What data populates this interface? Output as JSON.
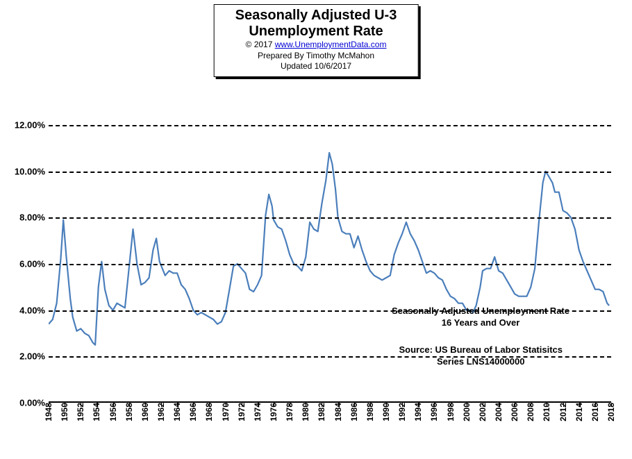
{
  "title": {
    "line1": "Seasonally Adjusted U-3",
    "line2": "Unemployment Rate",
    "copyright": "© 2017 ",
    "link_text": "www.UnemploymentData.com",
    "prepared": "Prepared By Timothy McMahon",
    "updated": "Updated 10/6/2017"
  },
  "chart": {
    "type": "line",
    "background_color": "#ffffff",
    "line_color": "#4a7ebb",
    "line_width": 2.2,
    "grid_dash": "8 6",
    "axis_color": "#000000",
    "y": {
      "min": 0,
      "max": 12,
      "step": 2,
      "format_suffix": ".00%"
    },
    "x": {
      "min": 1948,
      "max": 2018,
      "tick_step": 2
    },
    "annotations": {
      "a1_line1": "Seasonally Adjusted Unemployment Rate",
      "a1_line2": "16 Years and Over",
      "a2_line1": "Source:  US Bureau of Labor Statisitcs",
      "a2_line2": "Series LNS14000000"
    },
    "series": [
      [
        1948.0,
        3.4
      ],
      [
        1948.5,
        3.6
      ],
      [
        1949.0,
        4.3
      ],
      [
        1949.5,
        6.2
      ],
      [
        1949.83,
        7.9
      ],
      [
        1950.2,
        6.3
      ],
      [
        1950.7,
        4.5
      ],
      [
        1951.0,
        3.7
      ],
      [
        1951.5,
        3.1
      ],
      [
        1952.0,
        3.2
      ],
      [
        1952.5,
        3.0
      ],
      [
        1953.0,
        2.9
      ],
      [
        1953.5,
        2.6
      ],
      [
        1953.8,
        2.5
      ],
      [
        1954.2,
        5.0
      ],
      [
        1954.6,
        6.1
      ],
      [
        1955.0,
        4.9
      ],
      [
        1955.5,
        4.2
      ],
      [
        1956.0,
        4.0
      ],
      [
        1956.5,
        4.3
      ],
      [
        1957.0,
        4.2
      ],
      [
        1957.5,
        4.1
      ],
      [
        1958.0,
        5.8
      ],
      [
        1958.5,
        7.5
      ],
      [
        1959.0,
        6.0
      ],
      [
        1959.5,
        5.1
      ],
      [
        1960.0,
        5.2
      ],
      [
        1960.5,
        5.4
      ],
      [
        1961.0,
        6.6
      ],
      [
        1961.4,
        7.1
      ],
      [
        1961.8,
        6.1
      ],
      [
        1962.5,
        5.5
      ],
      [
        1963.0,
        5.7
      ],
      [
        1963.5,
        5.6
      ],
      [
        1964.0,
        5.6
      ],
      [
        1964.5,
        5.1
      ],
      [
        1965.0,
        4.9
      ],
      [
        1965.5,
        4.5
      ],
      [
        1966.0,
        4.0
      ],
      [
        1966.5,
        3.8
      ],
      [
        1967.0,
        3.9
      ],
      [
        1967.5,
        3.8
      ],
      [
        1968.0,
        3.7
      ],
      [
        1968.5,
        3.6
      ],
      [
        1969.0,
        3.4
      ],
      [
        1969.5,
        3.5
      ],
      [
        1970.0,
        3.9
      ],
      [
        1970.5,
        4.9
      ],
      [
        1971.0,
        5.9
      ],
      [
        1971.5,
        6.0
      ],
      [
        1972.0,
        5.8
      ],
      [
        1972.5,
        5.6
      ],
      [
        1973.0,
        4.9
      ],
      [
        1973.5,
        4.8
      ],
      [
        1974.0,
        5.1
      ],
      [
        1974.5,
        5.5
      ],
      [
        1975.0,
        8.1
      ],
      [
        1975.4,
        9.0
      ],
      [
        1975.8,
        8.5
      ],
      [
        1976.0,
        7.9
      ],
      [
        1976.5,
        7.6
      ],
      [
        1977.0,
        7.5
      ],
      [
        1977.5,
        7.0
      ],
      [
        1978.0,
        6.4
      ],
      [
        1978.5,
        6.0
      ],
      [
        1979.0,
        5.9
      ],
      [
        1979.5,
        5.7
      ],
      [
        1980.0,
        6.3
      ],
      [
        1980.5,
        7.8
      ],
      [
        1981.0,
        7.5
      ],
      [
        1981.5,
        7.4
      ],
      [
        1982.0,
        8.6
      ],
      [
        1982.5,
        9.6
      ],
      [
        1982.92,
        10.8
      ],
      [
        1983.3,
        10.3
      ],
      [
        1983.7,
        9.2
      ],
      [
        1984.0,
        8.0
      ],
      [
        1984.5,
        7.4
      ],
      [
        1985.0,
        7.3
      ],
      [
        1985.5,
        7.3
      ],
      [
        1986.0,
        6.7
      ],
      [
        1986.5,
        7.2
      ],
      [
        1987.0,
        6.6
      ],
      [
        1987.5,
        6.1
      ],
      [
        1988.0,
        5.7
      ],
      [
        1988.5,
        5.5
      ],
      [
        1989.0,
        5.4
      ],
      [
        1989.5,
        5.3
      ],
      [
        1990.0,
        5.4
      ],
      [
        1990.5,
        5.5
      ],
      [
        1991.0,
        6.4
      ],
      [
        1991.5,
        6.9
      ],
      [
        1992.0,
        7.3
      ],
      [
        1992.5,
        7.8
      ],
      [
        1993.0,
        7.3
      ],
      [
        1993.5,
        7.0
      ],
      [
        1994.0,
        6.6
      ],
      [
        1994.5,
        6.1
      ],
      [
        1995.0,
        5.6
      ],
      [
        1995.5,
        5.7
      ],
      [
        1996.0,
        5.6
      ],
      [
        1996.5,
        5.4
      ],
      [
        1997.0,
        5.3
      ],
      [
        1997.5,
        4.9
      ],
      [
        1998.0,
        4.6
      ],
      [
        1998.5,
        4.5
      ],
      [
        1999.0,
        4.3
      ],
      [
        1999.5,
        4.3
      ],
      [
        2000.0,
        4.0
      ],
      [
        2000.5,
        4.0
      ],
      [
        2000.8,
        3.9
      ],
      [
        2001.2,
        4.2
      ],
      [
        2001.7,
        5.0
      ],
      [
        2002.0,
        5.7
      ],
      [
        2002.5,
        5.8
      ],
      [
        2003.0,
        5.8
      ],
      [
        2003.5,
        6.3
      ],
      [
        2004.0,
        5.7
      ],
      [
        2004.5,
        5.6
      ],
      [
        2005.0,
        5.3
      ],
      [
        2005.5,
        5.0
      ],
      [
        2006.0,
        4.7
      ],
      [
        2006.5,
        4.6
      ],
      [
        2007.0,
        4.6
      ],
      [
        2007.5,
        4.6
      ],
      [
        2008.0,
        5.0
      ],
      [
        2008.5,
        5.8
      ],
      [
        2009.0,
        7.8
      ],
      [
        2009.5,
        9.5
      ],
      [
        2009.83,
        10.0
      ],
      [
        2010.2,
        9.8
      ],
      [
        2010.7,
        9.5
      ],
      [
        2011.0,
        9.1
      ],
      [
        2011.5,
        9.1
      ],
      [
        2012.0,
        8.3
      ],
      [
        2012.5,
        8.2
      ],
      [
        2013.0,
        8.0
      ],
      [
        2013.5,
        7.5
      ],
      [
        2014.0,
        6.6
      ],
      [
        2014.5,
        6.1
      ],
      [
        2015.0,
        5.7
      ],
      [
        2015.5,
        5.3
      ],
      [
        2016.0,
        4.9
      ],
      [
        2016.5,
        4.9
      ],
      [
        2017.0,
        4.8
      ],
      [
        2017.5,
        4.3
      ],
      [
        2017.75,
        4.2
      ]
    ]
  }
}
